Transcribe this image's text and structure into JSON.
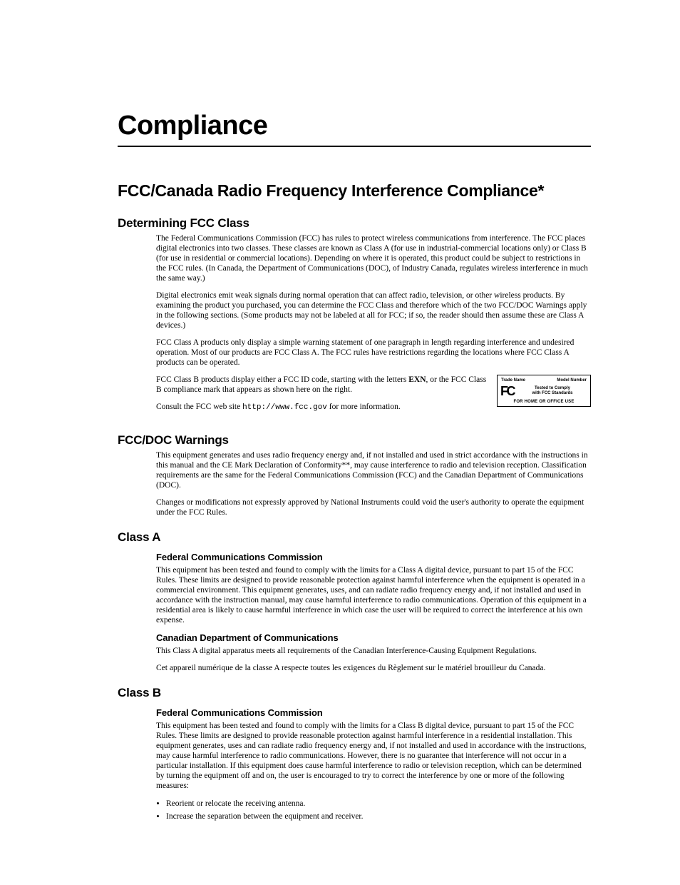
{
  "title": "Compliance",
  "section1": {
    "heading": "FCC/Canada Radio Frequency Interference Compliance*",
    "sub1": {
      "heading": "Determining FCC Class",
      "p1": "The Federal Communications Commission (FCC) has rules to protect wireless communications from interference. The FCC places digital electronics into two classes. These classes are known as Class A (for use in industrial-commercial locations only) or Class B (for use in residential or commercial locations). Depending on where it is operated, this product could be subject to restrictions in the FCC rules. (In Canada, the Department of Communications (DOC), of Industry Canada, regulates wireless interference in much the same way.)",
      "p2": "Digital electronics emit weak signals during normal operation that can affect radio, television, or other wireless products. By examining the product you purchased, you can determine the FCC Class and therefore which of the two FCC/DOC Warnings apply in the following sections. (Some products may not be labeled at all for FCC; if so, the reader should then assume these are Class A devices.)",
      "p3": "FCC Class A products only display a simple warning statement of one paragraph in length regarding interference and undesired operation. Most of our products are FCC Class A. The FCC rules have restrictions regarding the locations where FCC Class A products can be operated.",
      "p4_a": "FCC Class B products display either a FCC ID code, starting with the letters ",
      "p4_bold": "EXN",
      "p4_b": ", or the FCC Class B compliance mark that appears as shown here on the right.",
      "p5_a": "Consult the FCC web site ",
      "p5_url": "http://www.fcc.gov",
      "p5_b": " for more information."
    },
    "fccbox": {
      "trade": "Trade Name",
      "model": "Model Number",
      "logo": "FC",
      "tagline1": "Tested to Comply",
      "tagline2": "with FCC Standards",
      "bottom": "FOR HOME OR OFFICE USE"
    },
    "sub2": {
      "heading": "FCC/DOC Warnings",
      "p1": "This equipment generates and uses radio frequency energy and, if not installed and used in strict accordance with the instructions in this manual and the CE Mark Declaration of Conformity**, may cause interference to radio and television reception. Classification requirements are the same for the Federal Communications Commission (FCC) and the Canadian Department of Communications (DOC).",
      "p2": "Changes or modifications not expressly approved by National Instruments could void the user's authority to operate the equipment under the FCC Rules."
    },
    "sub3": {
      "heading": "Class A",
      "fcc_h": "Federal Communications Commission",
      "fcc_p": "This equipment has been tested and found to comply with the limits for a Class A digital device, pursuant to part 15 of the FCC Rules. These limits are designed to provide reasonable protection against harmful interference when the equipment is operated in a commercial environment. This equipment generates, uses, and can radiate radio frequency energy and, if not installed and used in accordance with the instruction manual, may cause harmful interference to radio communications. Operation of this equipment in a residential area is likely to cause harmful interference in which case the user will be required to correct the interference at his own expense.",
      "cdc_h": "Canadian Department of Communications",
      "cdc_p1": "This Class A digital apparatus meets all requirements of the Canadian Interference-Causing Equipment Regulations.",
      "cdc_p2": "Cet appareil numérique de la classe A respecte toutes les exigences du Règlement sur le matériel brouilleur du Canada."
    },
    "sub4": {
      "heading": "Class B",
      "fcc_h": "Federal Communications Commission",
      "fcc_p": "This equipment has been tested and found to comply with the limits for a Class B digital device, pursuant to part 15 of the FCC Rules. These limits are designed to provide reasonable protection against harmful interference in a residential installation. This equipment generates, uses and can radiate radio frequency energy and, if not installed and used in accordance with the instructions, may cause harmful interference to radio communications. However, there is no guarantee that interference will not occur in a particular installation. If this equipment does cause harmful interference to radio or television reception, which can be determined by turning the equipment off and on, the user is encouraged to try to correct the interference by one or more of the following measures:",
      "bullets": [
        "Reorient or relocate the receiving antenna.",
        "Increase the separation between the equipment and receiver."
      ]
    }
  }
}
